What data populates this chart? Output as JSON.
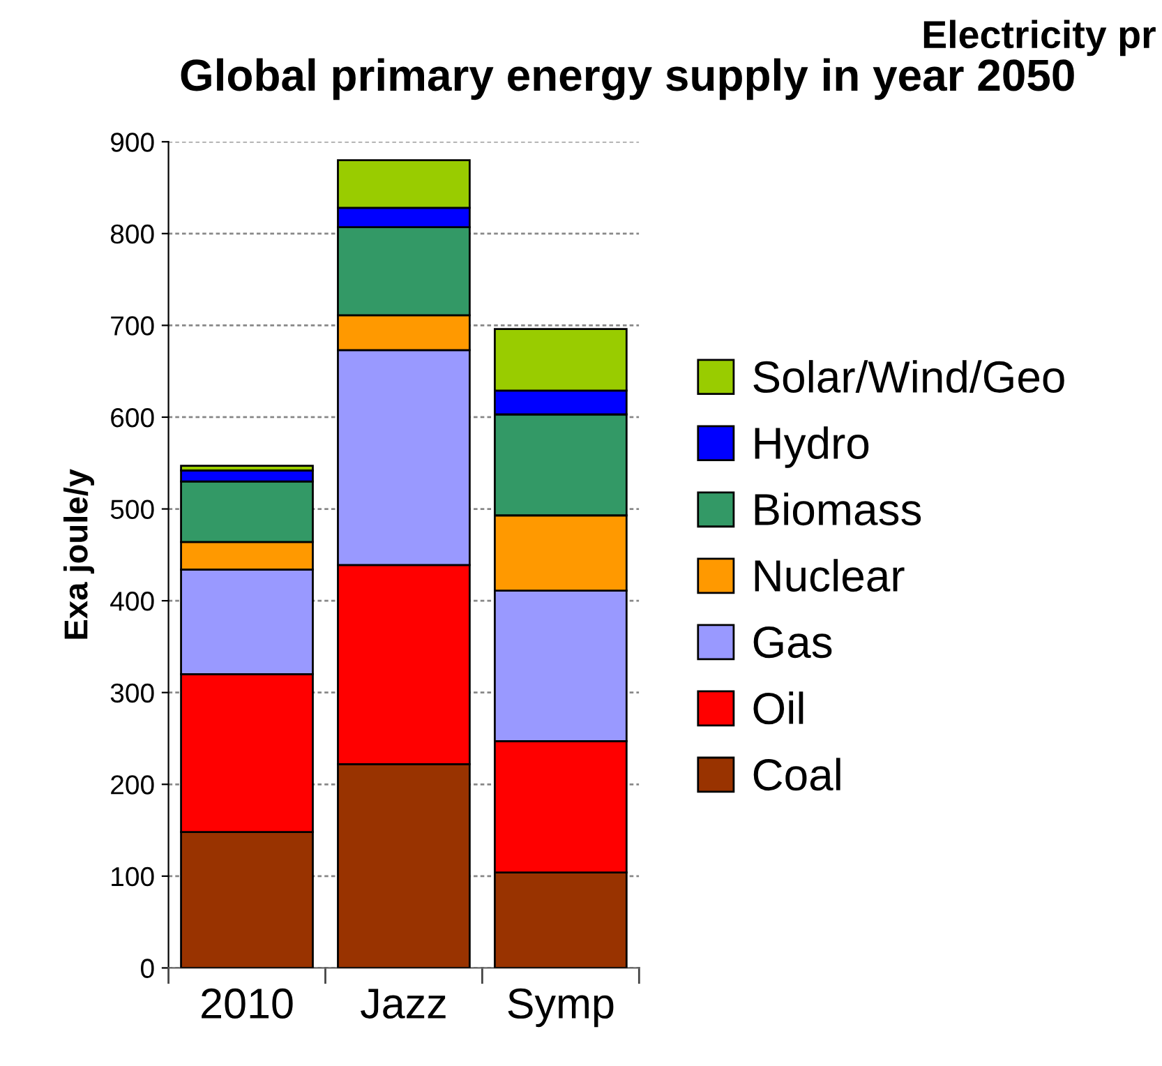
{
  "chart_data": {
    "type": "bar",
    "stacked": true,
    "title": "Global primary energy supply in year 2050",
    "ylabel": "Exa joule/y",
    "annotations": [
      "Electricity pr"
    ],
    "categories": [
      "2010",
      "Jazz",
      "Symp"
    ],
    "series": [
      {
        "name": "Coal",
        "color": "#993300",
        "values": [
          148,
          222,
          104
        ]
      },
      {
        "name": "Oil",
        "color": "#ff0000",
        "values": [
          172,
          217,
          143
        ]
      },
      {
        "name": "Gas",
        "color": "#9999ff",
        "values": [
          114,
          234,
          164
        ]
      },
      {
        "name": "Nuclear",
        "color": "#ff9900",
        "values": [
          30,
          38,
          82
        ]
      },
      {
        "name": "Biomass",
        "color": "#339966",
        "values": [
          66,
          96,
          110
        ]
      },
      {
        "name": "Hydro",
        "color": "#0000ff",
        "values": [
          12,
          21,
          26
        ]
      },
      {
        "name": "Solar/Wind/Geo",
        "color": "#99cc00",
        "values": [
          5,
          52,
          67
        ]
      }
    ],
    "ylim": [
      0,
      900
    ],
    "yticks": [
      0,
      100,
      200,
      300,
      400,
      500,
      600,
      700,
      800,
      900
    ],
    "grid": "y",
    "legend": "right"
  }
}
